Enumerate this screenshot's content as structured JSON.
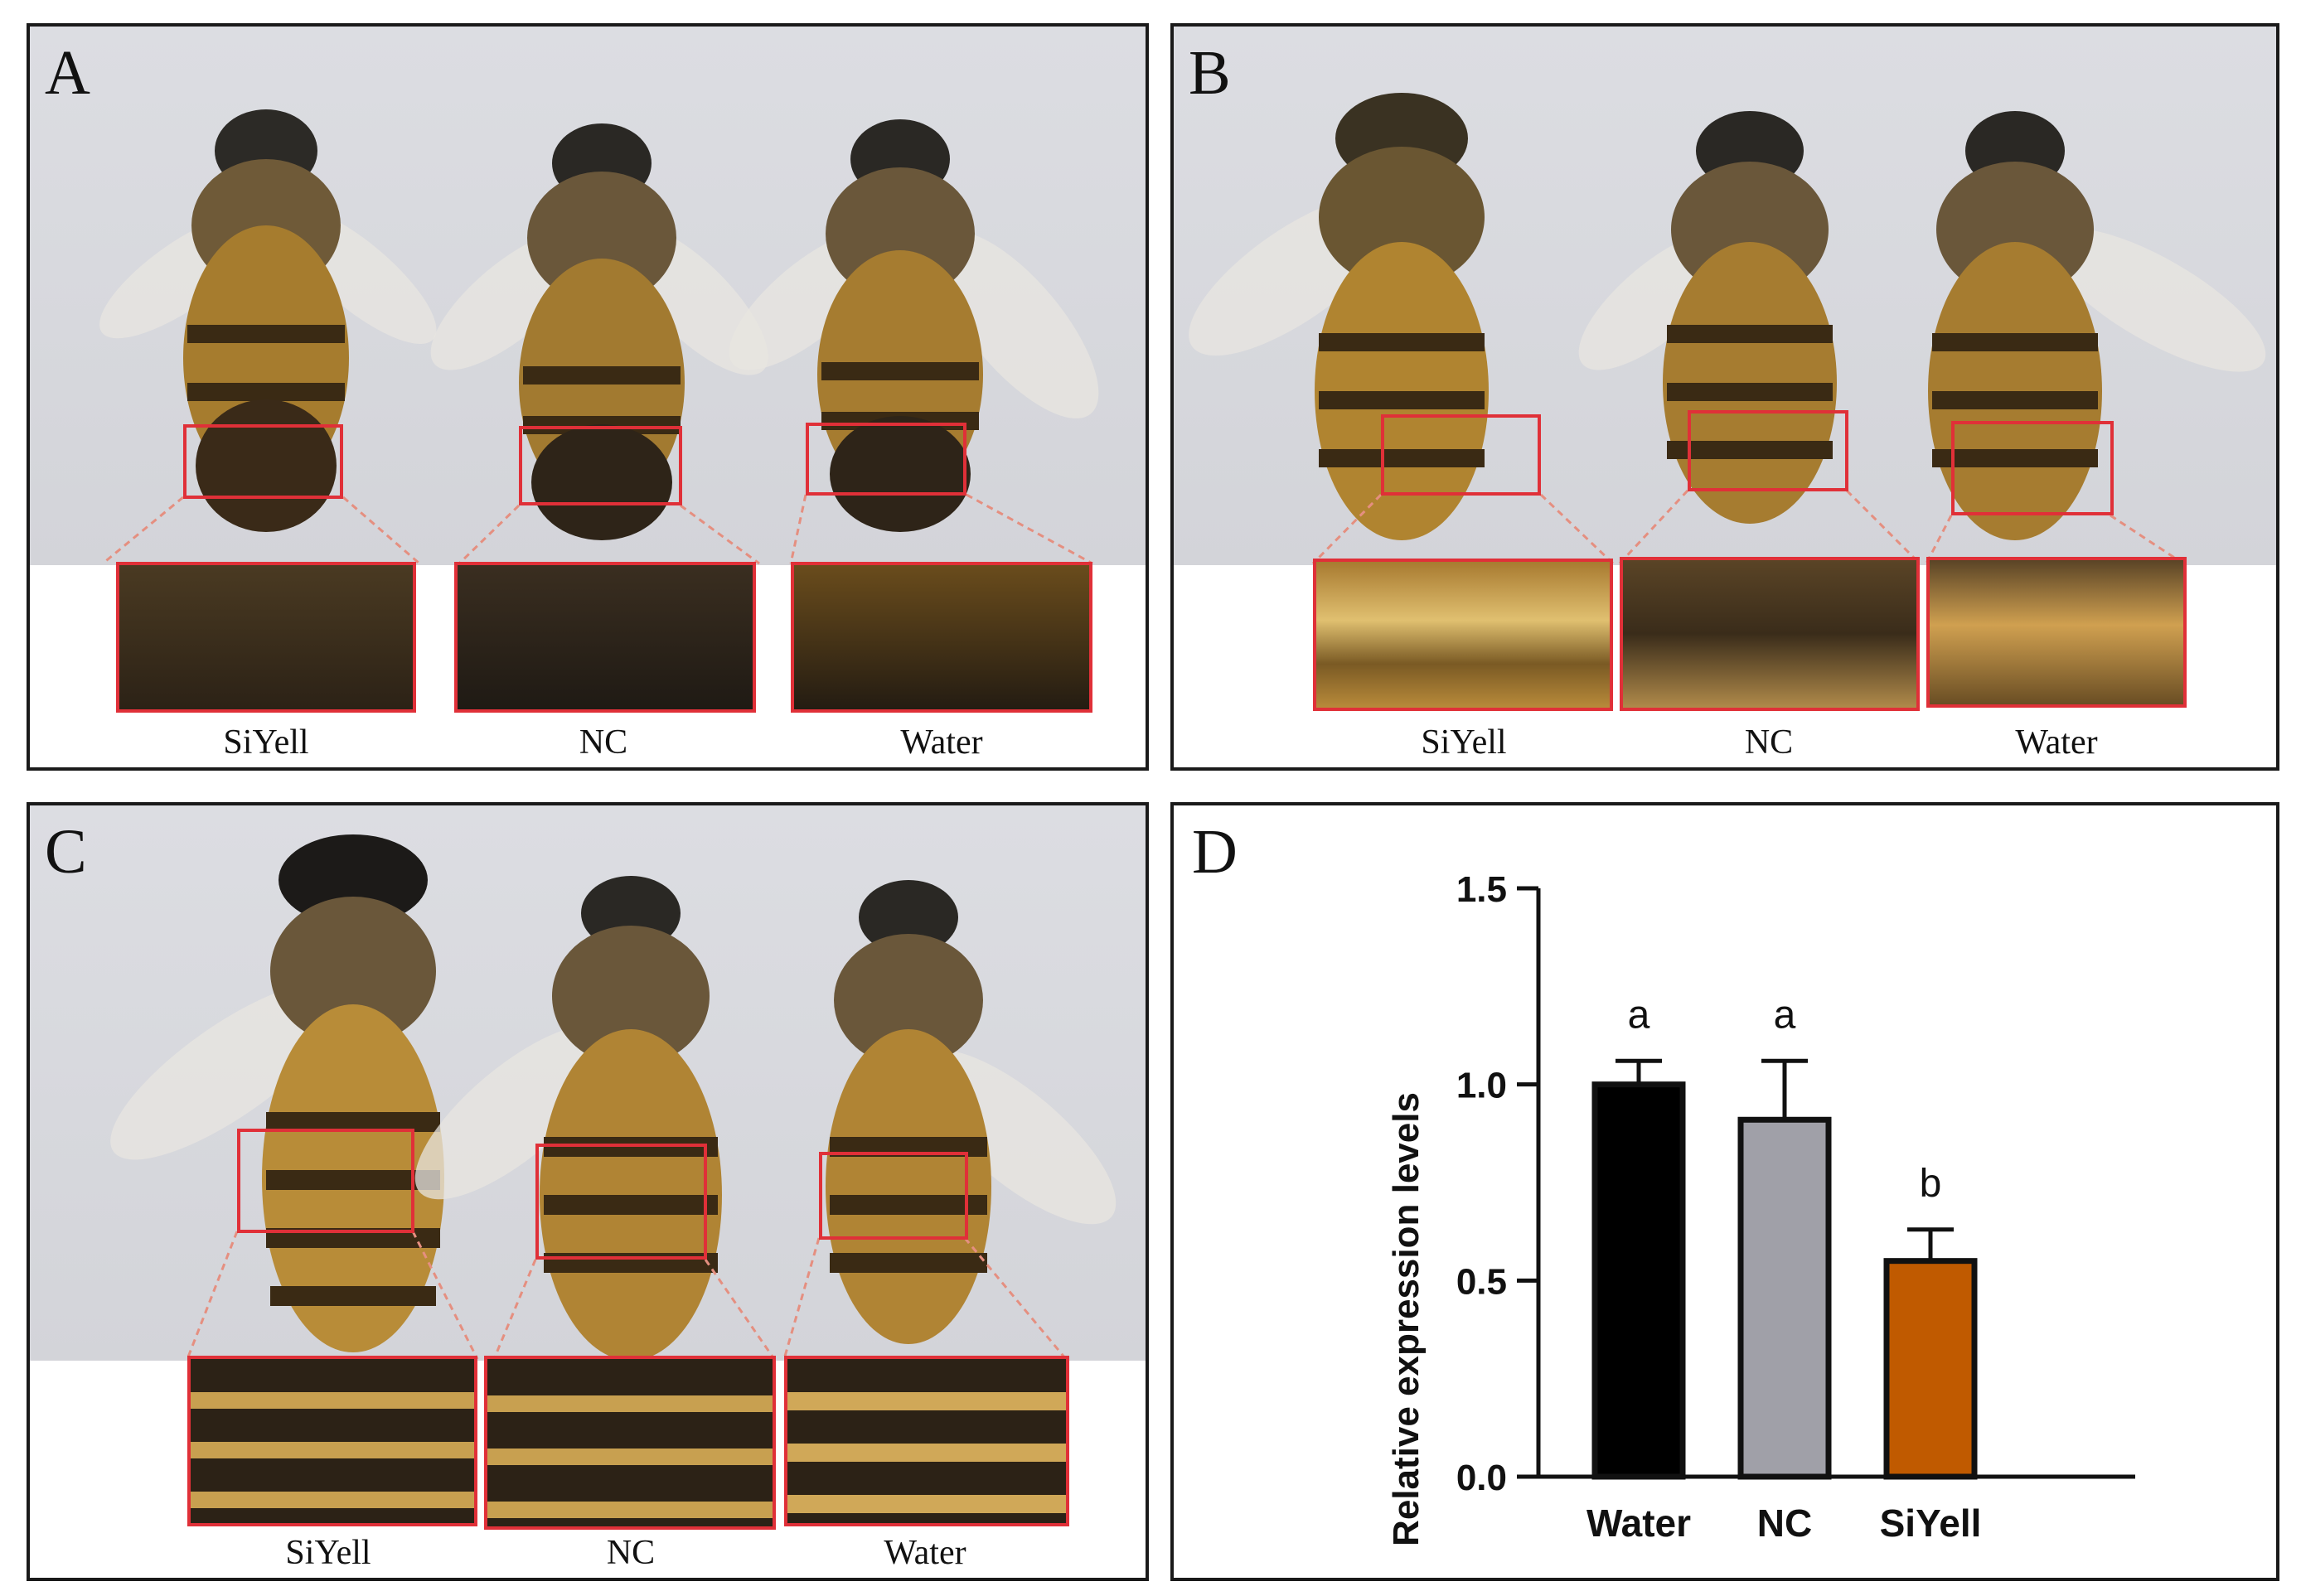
{
  "panels": {
    "A": {
      "letter": "A",
      "labels": [
        "SiYell",
        "NC",
        "Water"
      ]
    },
    "B": {
      "letter": "B",
      "labels": [
        "SiYell",
        "NC",
        "Water"
      ]
    },
    "C": {
      "letter": "C",
      "labels": [
        "SiYell",
        "NC",
        "Water"
      ]
    },
    "D": {
      "letter": "D"
    }
  },
  "chart_data": {
    "type": "bar",
    "categories": [
      "Water",
      "NC",
      "SiYell"
    ],
    "values": [
      1.0,
      0.91,
      0.55
    ],
    "errors": [
      0.06,
      0.15,
      0.08
    ],
    "significance": [
      "a",
      "a",
      "b"
    ],
    "colors": [
      "#000000",
      "#a0a0a8",
      "#c05a00"
    ],
    "ylabel": "Relative expression levels",
    "xlabel": "",
    "ylim": [
      0,
      1.5
    ],
    "yticks": [
      "0.0",
      "0.5",
      "1.0",
      "1.5"
    ]
  }
}
